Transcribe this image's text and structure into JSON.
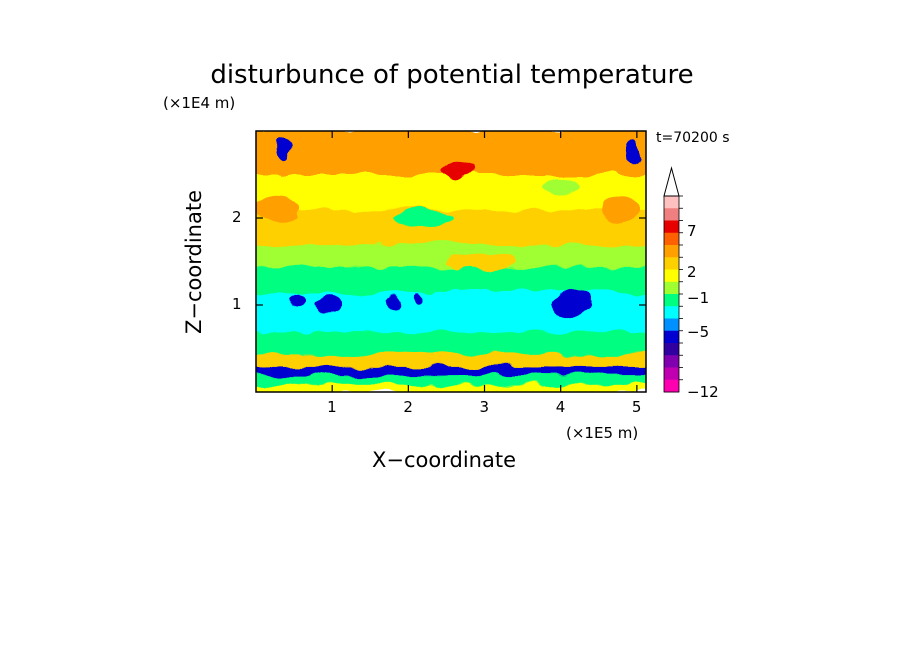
{
  "chart_data": {
    "type": "heatmap",
    "title": "disturbunce of potential temperature",
    "xlabel": "X−coordinate",
    "ylabel": "Z−coordinate",
    "x_unit": "(×1E5 m)",
    "y_unit": "(×1E4 m)",
    "time_label": "t=70200 s",
    "x_ticks": [
      "1",
      "2",
      "3",
      "4",
      "5"
    ],
    "y_ticks": [
      "1",
      "2"
    ],
    "xlim": [
      0,
      5.12
    ],
    "ylim": [
      0,
      3.0
    ],
    "colorbar": {
      "labels": [
        "7",
        "2",
        "−1",
        "−5",
        "−12"
      ],
      "colors": [
        "#ffc0c0",
        "#f08080",
        "#e60000",
        "#ff6000",
        "#ffa000",
        "#ffd000",
        "#ffff00",
        "#a0ff30",
        "#00ff80",
        "#00ffff",
        "#0090ff",
        "#0000d0",
        "#3000a0",
        "#8000b0",
        "#c000b0",
        "#ff00b0"
      ],
      "extend": "max"
    },
    "bands": [
      {
        "z_from": 0.0,
        "z_to": 0.1,
        "level": "warm",
        "color": "#ffff00"
      },
      {
        "z_from": 0.1,
        "z_to": 0.2,
        "level": "green",
        "color": "#00ff80"
      },
      {
        "z_from": 0.2,
        "z_to": 0.3,
        "level": "cold",
        "color": "#0000d0"
      },
      {
        "z_from": 0.3,
        "z_to": 0.45,
        "level": "warm",
        "color": "#ffd000"
      },
      {
        "z_from": 0.45,
        "z_to": 0.7,
        "level": "green",
        "color": "#00ff80"
      },
      {
        "z_from": 0.7,
        "z_to": 1.15,
        "level": "cyan",
        "color": "#00ffff"
      },
      {
        "z_from": 1.15,
        "z_to": 1.45,
        "level": "green",
        "color": "#00ff80"
      },
      {
        "z_from": 1.45,
        "z_to": 1.7,
        "level": "lightgreen",
        "color": "#a0ff30"
      },
      {
        "z_from": 1.7,
        "z_to": 2.1,
        "level": "warm",
        "color": "#ffd000"
      },
      {
        "z_from": 2.1,
        "z_to": 2.5,
        "level": "warm",
        "color": "#ffff00"
      },
      {
        "z_from": 2.5,
        "z_to": 3.0,
        "level": "hot",
        "color": "#ffa000"
      }
    ],
    "features": [
      {
        "x": 0.55,
        "z": 1.05,
        "rx": 0.12,
        "rz": 0.08,
        "color": "#0000d0"
      },
      {
        "x": 0.95,
        "z": 1.0,
        "rx": 0.18,
        "rz": 0.1,
        "color": "#0000d0"
      },
      {
        "x": 1.8,
        "z": 1.0,
        "rx": 0.1,
        "rz": 0.09,
        "color": "#0000d0"
      },
      {
        "x": 2.1,
        "z": 1.05,
        "rx": 0.06,
        "rz": 0.08,
        "color": "#0000d0"
      },
      {
        "x": 4.15,
        "z": 1.0,
        "rx": 0.25,
        "rz": 0.16,
        "color": "#0000d0"
      },
      {
        "x": 0.35,
        "z": 2.8,
        "rx": 0.1,
        "rz": 0.12,
        "color": "#0000d0"
      },
      {
        "x": 4.95,
        "z": 2.75,
        "rx": 0.1,
        "rz": 0.12,
        "color": "#0000d0"
      },
      {
        "x": 0.3,
        "z": 2.1,
        "rx": 0.3,
        "rz": 0.15,
        "color": "#ffa000"
      },
      {
        "x": 2.65,
        "z": 2.55,
        "rx": 0.2,
        "rz": 0.12,
        "color": "#e60000"
      },
      {
        "x": 4.8,
        "z": 2.1,
        "rx": 0.25,
        "rz": 0.15,
        "color": "#ffa000"
      },
      {
        "x": 2.95,
        "z": 1.5,
        "rx": 0.45,
        "rz": 0.1,
        "color": "#ffd000"
      },
      {
        "x": 2.2,
        "z": 2.0,
        "rx": 0.4,
        "rz": 0.08,
        "color": "#00ff80"
      },
      {
        "x": 4.0,
        "z": 2.35,
        "rx": 0.25,
        "rz": 0.1,
        "color": "#a0ff30"
      }
    ]
  }
}
